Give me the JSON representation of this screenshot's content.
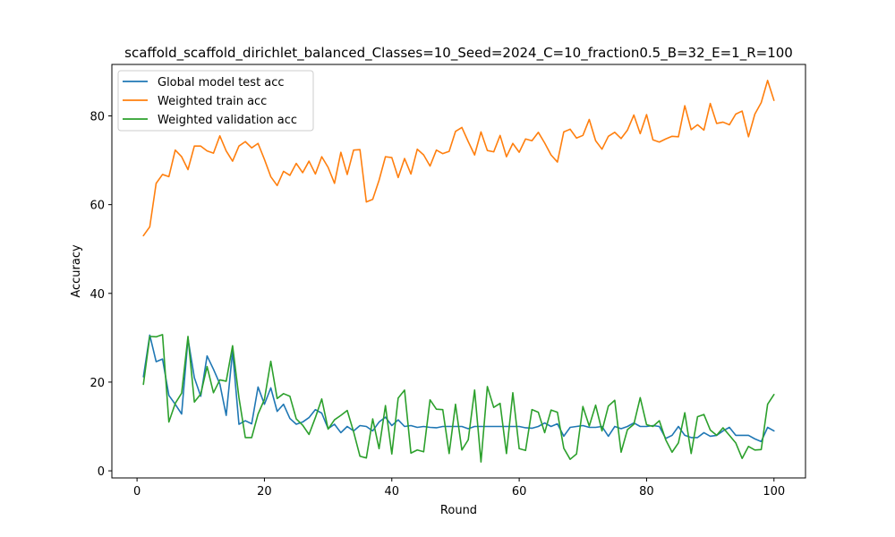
{
  "chart_data": {
    "type": "line",
    "title": "scaffold_scaffold_dirichlet_balanced_Classes=10_Seed=2024_C=10_fraction0.5_B=32_E=1_R=100",
    "xlabel": "Round",
    "ylabel": "Accuracy",
    "xlim": [
      -3.95,
      104.95
    ],
    "ylim": [
      -1.6,
      91.6
    ],
    "xticks": [
      0,
      20,
      40,
      60,
      80,
      100
    ],
    "yticks": [
      0,
      20,
      40,
      60,
      80
    ],
    "grid": false,
    "legend_position": "upper-left",
    "x": [
      1,
      2,
      3,
      4,
      5,
      6,
      7,
      8,
      9,
      10,
      11,
      12,
      13,
      14,
      15,
      16,
      17,
      18,
      19,
      20,
      21,
      22,
      23,
      24,
      25,
      26,
      27,
      28,
      29,
      30,
      31,
      32,
      33,
      34,
      35,
      36,
      37,
      38,
      39,
      40,
      41,
      42,
      43,
      44,
      45,
      46,
      47,
      48,
      49,
      50,
      51,
      52,
      53,
      54,
      55,
      56,
      57,
      58,
      59,
      60,
      61,
      62,
      63,
      64,
      65,
      66,
      67,
      68,
      69,
      70,
      71,
      72,
      73,
      74,
      75,
      76,
      77,
      78,
      79,
      80,
      81,
      82,
      83,
      84,
      85,
      86,
      87,
      88,
      89,
      90,
      91,
      92,
      93,
      94,
      95,
      96,
      97,
      98,
      99,
      100
    ],
    "series": [
      {
        "name": "Global model test acc",
        "color": "#1f77b4",
        "values": [
          21.2,
          30.6,
          24.6,
          25.2,
          17.0,
          15.0,
          12.8,
          29.8,
          21.0,
          16.8,
          25.9,
          22.9,
          19.6,
          12.5,
          26.9,
          10.5,
          11.3,
          10.6,
          18.9,
          15.0,
          18.7,
          13.4,
          15.0,
          11.8,
          10.5,
          11.0,
          12.0,
          13.8,
          13.0,
          9.5,
          10.5,
          8.6,
          10.0,
          9.0,
          10.2,
          10.0,
          9.0,
          11.0,
          12.1,
          10.2,
          11.5,
          10.0,
          10.2,
          9.8,
          10.0,
          9.8,
          9.7,
          10.0,
          10.0,
          10.0,
          10.0,
          9.5,
          10.0,
          10.0,
          10.0,
          10.0,
          10.0,
          10.0,
          10.0,
          10.0,
          9.7,
          9.6,
          10.0,
          10.8,
          10.0,
          10.6,
          7.8,
          9.8,
          10.0,
          10.2,
          9.8,
          9.8,
          10.0,
          7.8,
          10.0,
          9.5,
          10.0,
          10.8,
          10.0,
          10.0,
          10.2,
          10.0,
          7.3,
          8.0,
          10.0,
          8.0,
          7.5,
          7.5,
          8.6,
          7.8,
          8.0,
          9.0,
          9.8,
          8.0,
          8.0,
          8.0,
          7.2,
          6.6,
          9.8,
          9.0
        ]
      },
      {
        "name": "Weighted train acc",
        "color": "#ff7f0e",
        "values": [
          53.0,
          55.0,
          64.8,
          66.8,
          66.3,
          72.3,
          70.8,
          67.9,
          73.2,
          73.2,
          72.1,
          71.6,
          75.5,
          72.1,
          69.8,
          73.2,
          74.2,
          72.8,
          73.8,
          70.2,
          66.3,
          64.3,
          67.5,
          66.6,
          69.3,
          67.2,
          69.8,
          66.9,
          70.8,
          68.4,
          64.8,
          71.8,
          66.8,
          72.3,
          72.4,
          60.6,
          61.2,
          65.5,
          70.8,
          70.6,
          66.1,
          70.4,
          66.9,
          72.5,
          71.2,
          68.7,
          72.3,
          71.5,
          72.0,
          76.5,
          77.4,
          74.2,
          71.2,
          76.4,
          72.2,
          71.9,
          75.6,
          70.8,
          73.8,
          71.8,
          74.8,
          74.4,
          76.3,
          73.9,
          71.2,
          69.6,
          76.4,
          77.0,
          75.0,
          75.6,
          79.2,
          74.4,
          72.5,
          75.4,
          76.3,
          74.9,
          76.8,
          80.2,
          76.0,
          80.3,
          74.6,
          74.1,
          74.8,
          75.4,
          75.3,
          82.3,
          76.9,
          78.0,
          76.8,
          82.8,
          78.3,
          78.6,
          78.0,
          80.4,
          81.1,
          75.3,
          80.4,
          83.0,
          88.0,
          83.5
        ]
      },
      {
        "name": "Weighted validation acc",
        "color": "#2ca02c",
        "values": [
          19.5,
          30.3,
          30.2,
          30.7,
          11.0,
          15.2,
          17.5,
          30.3,
          15.5,
          17.3,
          23.5,
          17.6,
          20.5,
          20.2,
          28.2,
          16.5,
          7.5,
          7.5,
          12.8,
          16.1,
          24.7,
          16.3,
          17.4,
          16.8,
          11.7,
          10.3,
          8.2,
          12.0,
          16.2,
          9.4,
          11.5,
          12.5,
          13.6,
          8.8,
          3.3,
          2.9,
          11.7,
          5.0,
          14.7,
          3.8,
          16.4,
          18.2,
          4.0,
          4.7,
          4.3,
          16.0,
          13.9,
          13.8,
          3.9,
          15.0,
          4.7,
          7.0,
          18.2,
          2.0,
          19.0,
          14.3,
          15.2,
          3.9,
          17.6,
          5.0,
          4.6,
          13.8,
          13.2,
          8.6,
          13.7,
          13.2,
          5.1,
          2.6,
          3.8,
          14.5,
          10.1,
          14.8,
          9.0,
          14.6,
          15.9,
          4.2,
          9.3,
          10.5,
          16.5,
          10.4,
          10.0,
          11.3,
          7.0,
          4.2,
          6.3,
          13.1,
          3.9,
          12.2,
          12.7,
          9.2,
          8.0,
          9.7,
          8.0,
          6.3,
          2.8,
          5.5,
          4.7,
          4.8,
          15.0,
          17.2
        ]
      }
    ]
  }
}
